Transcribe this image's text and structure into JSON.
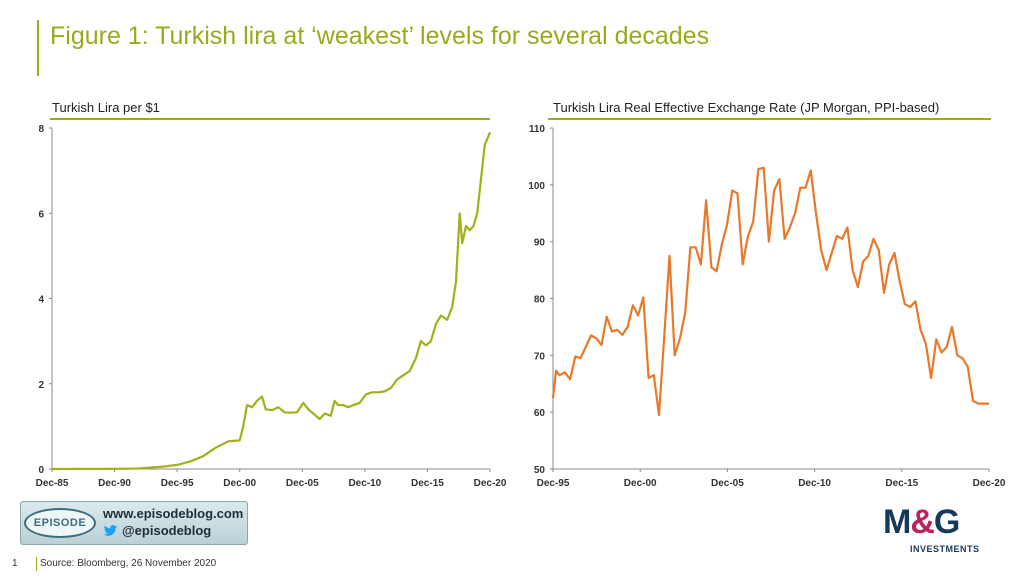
{
  "title": "Figure 1: Turkish lira at ‘weakest’ levels for several decades",
  "colors": {
    "accent": "#9aaa1c",
    "left_series": "#a2b01a",
    "right_series": "#e8792a"
  },
  "chart_data": [
    {
      "type": "line",
      "title": "Turkish Lira per $1",
      "xlabel": "",
      "ylabel": "",
      "xlim": [
        1985.92,
        2020.92
      ],
      "ylim": [
        0,
        8
      ],
      "yticks": [
        0,
        2,
        4,
        6,
        8
      ],
      "xticks": [
        {
          "label": "Dec-85",
          "value": 1985.92
        },
        {
          "label": "Dec-90",
          "value": 1990.92
        },
        {
          "label": "Dec-95",
          "value": 1995.92
        },
        {
          "label": "Dec-00",
          "value": 2000.92
        },
        {
          "label": "Dec-05",
          "value": 2005.92
        },
        {
          "label": "Dec-10",
          "value": 2010.92
        },
        {
          "label": "Dec-15",
          "value": 2015.92
        },
        {
          "label": "Dec-20",
          "value": 2020.92
        }
      ],
      "grid": false,
      "series": [
        {
          "name": "",
          "x": [
            1985.92,
            1987,
            1988,
            1989,
            1990,
            1991,
            1992,
            1993,
            1994,
            1995,
            1996,
            1997,
            1998,
            1999,
            2000,
            2000.92,
            2001.2,
            2001.5,
            2001.9,
            2002.3,
            2002.7,
            2003,
            2003.5,
            2004,
            2004.5,
            2005,
            2005.5,
            2006,
            2006.4,
            2006.8,
            2007.3,
            2007.7,
            2008.2,
            2008.5,
            2008.8,
            2009.2,
            2009.6,
            2010,
            2010.5,
            2011,
            2011.5,
            2012,
            2012.5,
            2013,
            2013.5,
            2014,
            2014.5,
            2015,
            2015.4,
            2015.8,
            2016.2,
            2016.6,
            2017,
            2017.5,
            2017.9,
            2018.2,
            2018.5,
            2018.7,
            2019,
            2019.3,
            2019.6,
            2019.9,
            2020.2,
            2020.5,
            2020.92
          ],
          "values": [
            0.001,
            0.001,
            0.002,
            0.002,
            0.003,
            0.005,
            0.008,
            0.014,
            0.04,
            0.06,
            0.1,
            0.18,
            0.3,
            0.5,
            0.65,
            0.67,
            1.0,
            1.5,
            1.45,
            1.6,
            1.7,
            1.4,
            1.38,
            1.45,
            1.33,
            1.32,
            1.33,
            1.55,
            1.4,
            1.3,
            1.17,
            1.3,
            1.25,
            1.6,
            1.5,
            1.5,
            1.45,
            1.5,
            1.55,
            1.75,
            1.8,
            1.8,
            1.82,
            1.9,
            2.1,
            2.2,
            2.3,
            2.6,
            3.0,
            2.9,
            3.0,
            3.4,
            3.6,
            3.5,
            3.8,
            4.4,
            6.0,
            5.3,
            5.7,
            5.6,
            5.7,
            6.0,
            6.8,
            7.6,
            7.9
          ]
        }
      ]
    },
    {
      "type": "line",
      "title": "Turkish Lira Real Effective Exchange Rate (JP Morgan, PPI-based)",
      "xlabel": "",
      "ylabel": "",
      "xlim": [
        1995.92,
        2020.92
      ],
      "ylim": [
        50,
        110
      ],
      "yticks": [
        50,
        60,
        70,
        80,
        90,
        100,
        110
      ],
      "xticks": [
        {
          "label": "Dec-95",
          "value": 1995.92
        },
        {
          "label": "Dec-00",
          "value": 2000.92
        },
        {
          "label": "Dec-05",
          "value": 2005.92
        },
        {
          "label": "Dec-10",
          "value": 2010.92
        },
        {
          "label": "Dec-15",
          "value": 2015.92
        },
        {
          "label": "Dec-20",
          "value": 2020.92
        }
      ],
      "grid": false,
      "series": [
        {
          "name": "",
          "x": [
            1995.92,
            1996.1,
            1996.3,
            1996.6,
            1996.9,
            1997.2,
            1997.5,
            1997.8,
            1998.1,
            1998.4,
            1998.7,
            1999,
            1999.3,
            1999.6,
            1999.9,
            2000.2,
            2000.5,
            2000.8,
            2001.1,
            2001.4,
            2001.7,
            2002.0,
            2002.3,
            2002.6,
            2002.9,
            2003.2,
            2003.5,
            2003.8,
            2004.1,
            2004.4,
            2004.7,
            2005.0,
            2005.3,
            2005.6,
            2005.9,
            2006.2,
            2006.5,
            2006.8,
            2007.1,
            2007.4,
            2007.7,
            2008.0,
            2008.3,
            2008.6,
            2008.9,
            2009.2,
            2009.5,
            2009.8,
            2010.1,
            2010.4,
            2010.7,
            2011.0,
            2011.3,
            2011.6,
            2011.9,
            2012.2,
            2012.5,
            2012.8,
            2013.1,
            2013.4,
            2013.7,
            2014.0,
            2014.3,
            2014.6,
            2014.9,
            2015.2,
            2015.5,
            2015.8,
            2016.1,
            2016.4,
            2016.7,
            2017.0,
            2017.3,
            2017.6,
            2017.9,
            2018.2,
            2018.5,
            2018.8,
            2019.1,
            2019.4,
            2019.7,
            2020.0,
            2020.3,
            2020.6,
            2020.92
          ],
          "values": [
            62.5,
            67.3,
            66.5,
            67.0,
            65.8,
            69.8,
            69.5,
            71.5,
            73.5,
            73.0,
            71.8,
            76.8,
            74.2,
            74.5,
            73.6,
            75.0,
            78.8,
            77.0,
            80.2,
            66.0,
            66.5,
            59.5,
            73.5,
            87.5,
            70.0,
            73.0,
            77.5,
            89.0,
            89.0,
            86.0,
            97.3,
            85.5,
            84.8,
            89.5,
            93.0,
            99.0,
            98.5,
            86.0,
            91.0,
            93.5,
            102.8,
            103.0,
            90.0,
            99.0,
            101.0,
            90.5,
            92.5,
            95.0,
            99.5,
            99.5,
            102.5,
            95.0,
            88.5,
            85.0,
            88.0,
            91.0,
            90.5,
            92.5,
            85.0,
            82.0,
            86.5,
            87.5,
            90.5,
            88.5,
            81.0,
            86.0,
            88.0,
            83.0,
            79.0,
            78.5,
            79.5,
            74.5,
            72.0,
            66.0,
            72.8,
            70.5,
            71.5,
            75.0,
            70.0,
            69.5,
            68.0,
            62.0,
            61.5,
            61.5,
            61.5
          ]
        }
      ]
    }
  ],
  "badge": {
    "logo_text": "EPISODE",
    "url": "www.episodeblog.com",
    "twitter": "@episodeblog"
  },
  "footer": {
    "page_number": "1",
    "source": "Source: Bloomberg,  26 November  2020"
  },
  "brand": {
    "main_left": "M",
    "main_amp": "&",
    "main_right": "G",
    "sub": "INVESTMENTS"
  }
}
